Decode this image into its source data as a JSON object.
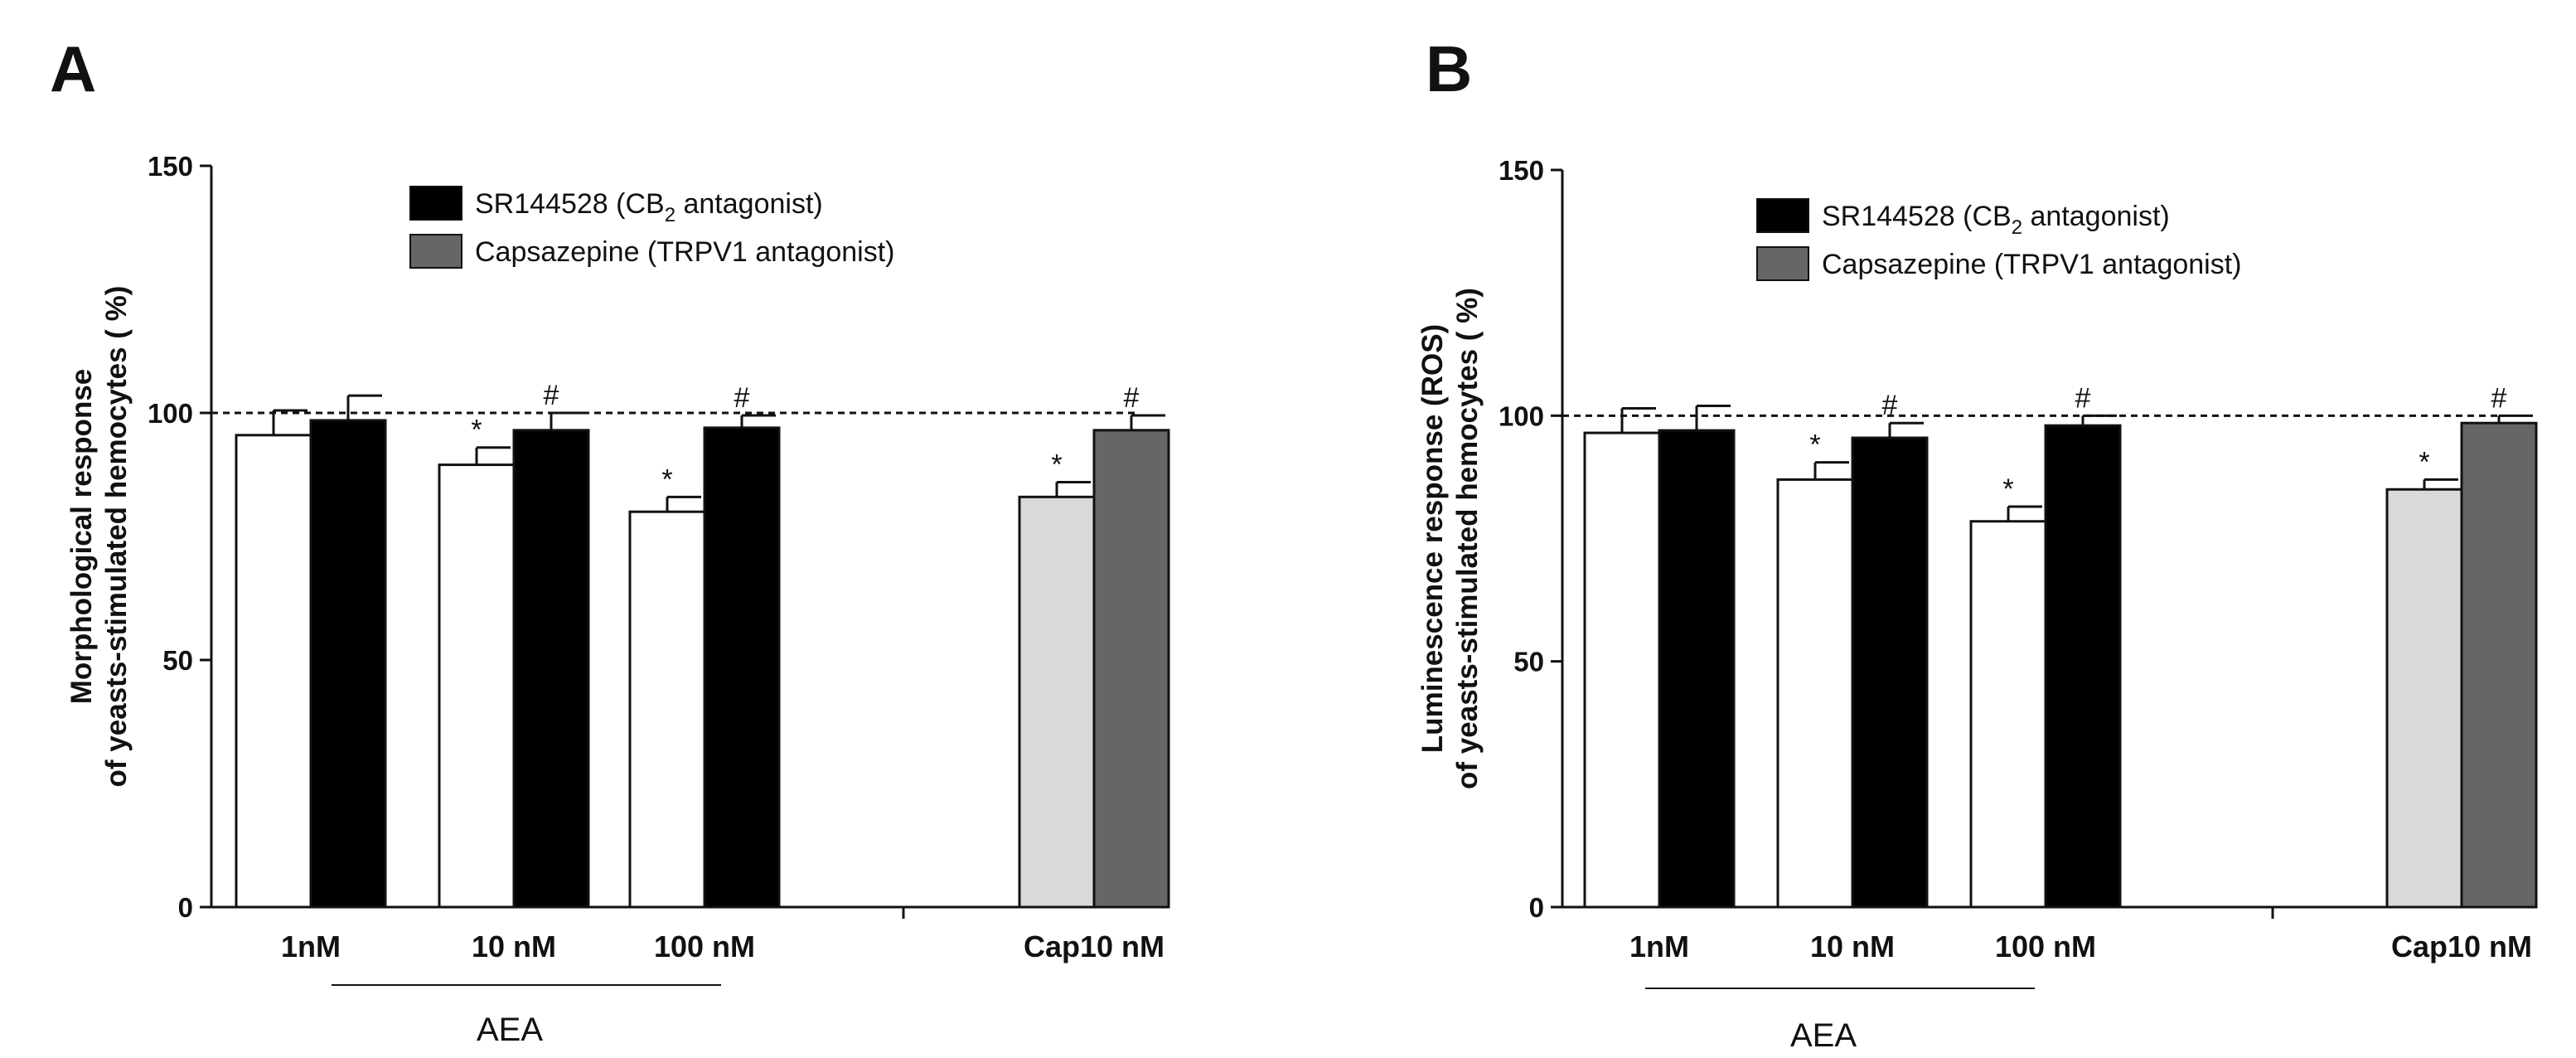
{
  "chart_data": [
    {
      "panel": "A",
      "type": "bar",
      "ylabel_line1": "Morphological response",
      "ylabel_line2": "of yeasts-stimulated hemocytes ( %)",
      "ylim": [
        0,
        150
      ],
      "yticks": [
        0,
        50,
        100,
        150
      ],
      "reference_line": 100,
      "categories": [
        "1nM",
        "10 nM",
        "100 nM",
        "Cap10 nM"
      ],
      "group_label": "AEA",
      "group_covers": [
        "1nM",
        "10 nM",
        "100 nM"
      ],
      "legend": [
        {
          "name": "SR144528 (CB",
          "sub": "2",
          "rest": " antagonist)",
          "color": "#000000"
        },
        {
          "name": "Capsazepine (TRPV1 antagonist)",
          "sub": "",
          "rest": "",
          "color": "#666666"
        }
      ],
      "bars": [
        {
          "category": "1nM",
          "value": 95.5,
          "error": 5,
          "color": "#ffffff",
          "sig": ""
        },
        {
          "category": "1nM",
          "value": 98.5,
          "error": 5,
          "color": "#000000",
          "sig": ""
        },
        {
          "category": "10 nM",
          "value": 89.5,
          "error": 3.5,
          "color": "#ffffff",
          "sig": "*"
        },
        {
          "category": "10 nM",
          "value": 96.5,
          "error": 3.5,
          "color": "#000000",
          "sig": "#"
        },
        {
          "category": "100 nM",
          "value": 80,
          "error": 3,
          "color": "#ffffff",
          "sig": "*"
        },
        {
          "category": "100 nM",
          "value": 97,
          "error": 2.5,
          "color": "#000000",
          "sig": "#"
        },
        {
          "category": "Cap10 nM",
          "value": 83,
          "error": 3,
          "color": "#d9d9d9",
          "sig": "*"
        },
        {
          "category": "Cap10 nM",
          "value": 96.5,
          "error": 3,
          "color": "#666666",
          "sig": "#"
        }
      ]
    },
    {
      "panel": "B",
      "type": "bar",
      "ylabel_line1": "Luminescence response (ROS)",
      "ylabel_line2": "of yeasts-stimulated hemocytes ( %)",
      "ylim": [
        0,
        150
      ],
      "yticks": [
        0,
        50,
        100,
        150
      ],
      "reference_line": 100,
      "categories": [
        "1nM",
        "10 nM",
        "100 nM",
        "Cap10 nM"
      ],
      "group_label": "AEA",
      "group_covers": [
        "1nM",
        "10 nM",
        "100 nM"
      ],
      "legend": [
        {
          "name": "SR144528 (CB",
          "sub": "2",
          "rest": " antagonist)",
          "color": "#000000"
        },
        {
          "name": "Capsazepine (TRPV1 antagonist)",
          "sub": "",
          "rest": "",
          "color": "#666666"
        }
      ],
      "bars": [
        {
          "category": "1nM",
          "value": 96.5,
          "error": 5,
          "color": "#ffffff",
          "sig": ""
        },
        {
          "category": "1nM",
          "value": 97,
          "error": 5,
          "color": "#000000",
          "sig": ""
        },
        {
          "category": "10 nM",
          "value": 87,
          "error": 3.5,
          "color": "#ffffff",
          "sig": "*"
        },
        {
          "category": "10 nM",
          "value": 95.5,
          "error": 3,
          "color": "#000000",
          "sig": "#"
        },
        {
          "category": "100 nM",
          "value": 78.5,
          "error": 3,
          "color": "#ffffff",
          "sig": "*"
        },
        {
          "category": "100 nM",
          "value": 98,
          "error": 2,
          "color": "#000000",
          "sig": "#"
        },
        {
          "category": "Cap10 nM",
          "value": 85,
          "error": 2,
          "color": "#d9d9d9",
          "sig": "*"
        },
        {
          "category": "Cap10 nM",
          "value": 98.5,
          "error": 1.5,
          "color": "#666666",
          "sig": "#"
        }
      ]
    }
  ]
}
